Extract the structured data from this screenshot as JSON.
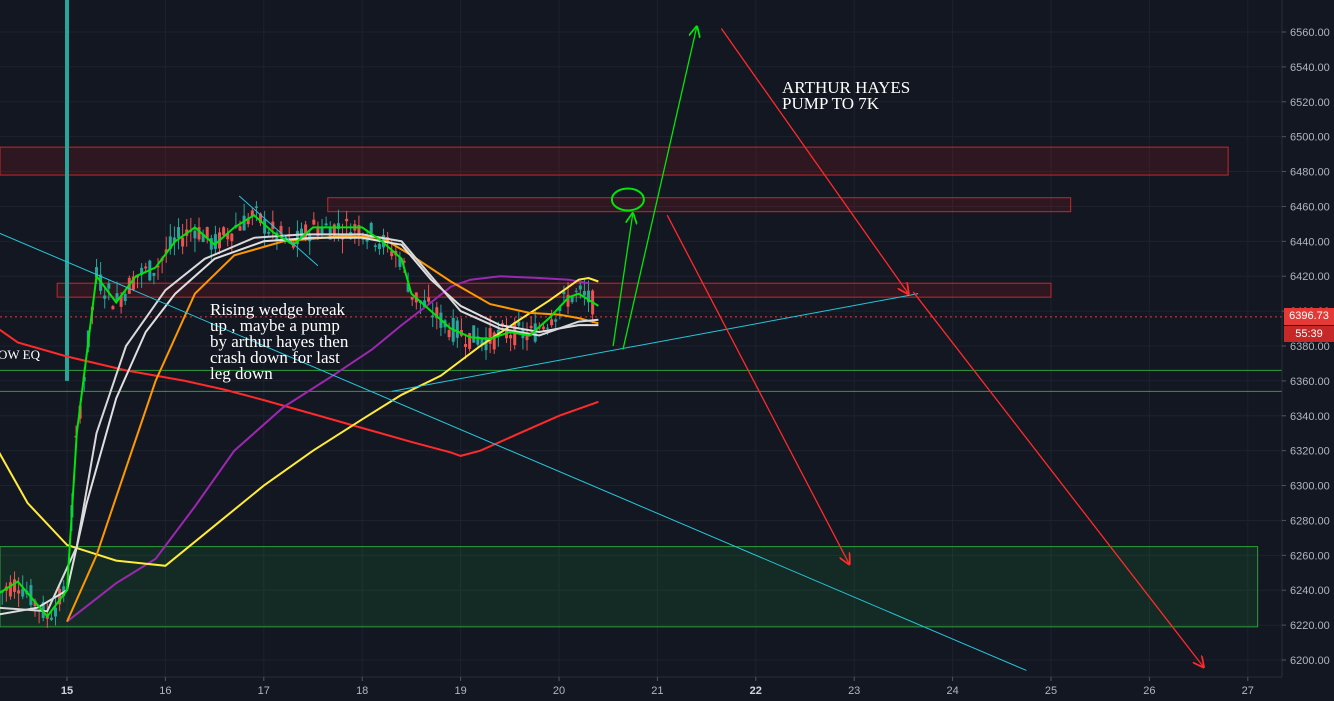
{
  "chart_data": {
    "type": "line",
    "ylim": [
      6190,
      6570
    ],
    "y_ticks": [
      "6200.00",
      "6220.00",
      "6240.00",
      "6260.00",
      "6280.00",
      "6300.00",
      "6320.00",
      "6340.00",
      "6360.00",
      "6380.00",
      "6400.00",
      "6420.00",
      "6440.00",
      "6460.00",
      "6480.00",
      "6500.00",
      "6520.00",
      "6540.00",
      "6560.00"
    ],
    "x_ticks": [
      {
        "label": "15",
        "bold": true
      },
      {
        "label": "16",
        "bold": false
      },
      {
        "label": "17",
        "bold": false
      },
      {
        "label": "18",
        "bold": false
      },
      {
        "label": "19",
        "bold": false
      },
      {
        "label": "20",
        "bold": false
      },
      {
        "label": "21",
        "bold": false
      },
      {
        "label": "22",
        "bold": true
      },
      {
        "label": "23",
        "bold": false
      },
      {
        "label": "24",
        "bold": false
      },
      {
        "label": "25",
        "bold": false
      },
      {
        "label": "26",
        "bold": false
      },
      {
        "label": "27",
        "bold": false
      }
    ],
    "last_price": "6396.73",
    "countdown": "55:39",
    "zones": [
      {
        "kind": "resistance",
        "from": 6478,
        "to": 6494,
        "start_day": 14.3,
        "end_day": 26.8
      },
      {
        "kind": "resistance",
        "from": 6457,
        "to": 6465,
        "start_day": 17.65,
        "end_day": 25.2
      },
      {
        "kind": "resistance",
        "from": 6408,
        "to": 6416,
        "start_day": 14.9,
        "end_day": 25.0
      },
      {
        "kind": "support",
        "from": 6219,
        "to": 6265,
        "start_day": 14.3,
        "end_day": 27.1
      }
    ],
    "support_lines": [
      6366,
      6354
    ],
    "moving_averages": [
      {
        "color": "#ff2a2a",
        "points": [
          [
            14.3,
            6390
          ],
          [
            14.5,
            6382
          ],
          [
            15.0,
            6374
          ],
          [
            15.6,
            6366
          ],
          [
            16.2,
            6360
          ],
          [
            16.6,
            6355
          ],
          [
            17.0,
            6349
          ],
          [
            17.5,
            6341
          ],
          [
            18.0,
            6333
          ],
          [
            18.5,
            6325
          ],
          [
            18.9,
            6319
          ],
          [
            19.0,
            6317
          ],
          [
            19.2,
            6320
          ],
          [
            19.6,
            6330
          ],
          [
            20.0,
            6340
          ],
          [
            20.4,
            6348
          ]
        ]
      },
      {
        "color": "#9c27b0",
        "points": [
          [
            15.0,
            6222
          ],
          [
            15.5,
            6244
          ],
          [
            15.9,
            6258
          ],
          [
            16.3,
            6288
          ],
          [
            16.7,
            6320
          ],
          [
            17.2,
            6345
          ],
          [
            17.7,
            6363
          ],
          [
            18.1,
            6378
          ],
          [
            18.4,
            6392
          ],
          [
            18.7,
            6405
          ],
          [
            18.9,
            6414
          ],
          [
            19.1,
            6418
          ],
          [
            19.4,
            6420
          ],
          [
            19.8,
            6419
          ],
          [
            20.1,
            6418
          ],
          [
            20.3,
            6416
          ]
        ]
      },
      {
        "color": "#ffeb3b",
        "points": [
          [
            14.3,
            6320
          ],
          [
            14.6,
            6290
          ],
          [
            15.0,
            6266
          ],
          [
            15.5,
            6257
          ],
          [
            16.0,
            6254
          ],
          [
            16.5,
            6277
          ],
          [
            17.0,
            6300
          ],
          [
            17.5,
            6320
          ],
          [
            18.0,
            6338
          ],
          [
            18.4,
            6352
          ],
          [
            18.8,
            6363
          ],
          [
            19.2,
            6380
          ],
          [
            19.6,
            6395
          ],
          [
            19.9,
            6406
          ],
          [
            20.1,
            6414
          ],
          [
            20.2,
            6418
          ],
          [
            20.3,
            6419
          ],
          [
            20.4,
            6417
          ]
        ]
      },
      {
        "color": "#ff9800",
        "points": [
          [
            15.0,
            6222
          ],
          [
            15.3,
            6260
          ],
          [
            15.6,
            6310
          ],
          [
            15.9,
            6360
          ],
          [
            16.3,
            6410
          ],
          [
            16.7,
            6432
          ],
          [
            17.2,
            6440
          ],
          [
            17.8,
            6443
          ],
          [
            18.2,
            6442
          ],
          [
            18.5,
            6432
          ],
          [
            18.9,
            6417
          ],
          [
            19.3,
            6404
          ],
          [
            19.7,
            6399
          ],
          [
            20.0,
            6398
          ],
          [
            20.2,
            6396
          ],
          [
            20.4,
            6393
          ]
        ]
      },
      {
        "color": "#e0e0e0",
        "points": [
          [
            14.3,
            6226
          ],
          [
            14.7,
            6230
          ],
          [
            15.0,
            6240
          ],
          [
            15.2,
            6290
          ],
          [
            15.5,
            6350
          ],
          [
            15.8,
            6388
          ],
          [
            16.1,
            6410
          ],
          [
            16.5,
            6430
          ],
          [
            17.0,
            6440
          ],
          [
            17.5,
            6442
          ],
          [
            18.0,
            6442
          ],
          [
            18.4,
            6438
          ],
          [
            18.7,
            6418
          ],
          [
            19.0,
            6403
          ],
          [
            19.4,
            6392
          ],
          [
            19.8,
            6388
          ],
          [
            20.2,
            6392
          ],
          [
            20.4,
            6392
          ]
        ]
      },
      {
        "color": "#d9d9d9",
        "points": [
          [
            14.3,
            6230
          ],
          [
            14.8,
            6228
          ],
          [
            15.1,
            6265
          ],
          [
            15.3,
            6330
          ],
          [
            15.6,
            6380
          ],
          [
            16.0,
            6412
          ],
          [
            16.4,
            6430
          ],
          [
            16.9,
            6442
          ],
          [
            17.4,
            6444
          ],
          [
            18.0,
            6444
          ],
          [
            18.4,
            6440
          ],
          [
            18.7,
            6420
          ],
          [
            19.0,
            6400
          ],
          [
            19.4,
            6390
          ],
          [
            19.8,
            6386
          ],
          [
            20.2,
            6394
          ],
          [
            20.4,
            6395
          ]
        ]
      },
      {
        "color": "#00e60b",
        "points": [
          [
            14.3,
            6238
          ],
          [
            14.5,
            6245
          ],
          [
            14.8,
            6225
          ],
          [
            15.0,
            6240
          ],
          [
            15.1,
            6330
          ],
          [
            15.3,
            6420
          ],
          [
            15.5,
            6405
          ],
          [
            15.7,
            6420
          ],
          [
            15.9,
            6425
          ],
          [
            16.1,
            6440
          ],
          [
            16.3,
            6448
          ],
          [
            16.5,
            6438
          ],
          [
            16.7,
            6448
          ],
          [
            16.9,
            6455
          ],
          [
            17.1,
            6445
          ],
          [
            17.3,
            6438
          ],
          [
            17.5,
            6448
          ],
          [
            17.8,
            6448
          ],
          [
            18.0,
            6448
          ],
          [
            18.2,
            6440
          ],
          [
            18.4,
            6430
          ],
          [
            18.5,
            6410
          ],
          [
            18.7,
            6400
          ],
          [
            18.9,
            6390
          ],
          [
            19.1,
            6385
          ],
          [
            19.3,
            6384
          ],
          [
            19.5,
            6388
          ],
          [
            19.7,
            6386
          ],
          [
            19.9,
            6396
          ],
          [
            20.1,
            6408
          ],
          [
            20.2,
            6410
          ],
          [
            20.4,
            6403
          ]
        ]
      }
    ],
    "trendlines": [
      {
        "color": "#26c6da",
        "from": [
          14.3,
          6445
        ],
        "to": [
          24.75,
          6194
        ]
      },
      {
        "color": "#26c6da",
        "from": [
          18.3,
          6354
        ],
        "to": [
          23.65,
          6410
        ]
      },
      {
        "color": "#26c6da",
        "from": [
          16.75,
          6466
        ],
        "to": [
          17.55,
          6426
        ]
      }
    ],
    "arrows": [
      {
        "color": "#00e60b",
        "from": [
          20.55,
          6380
        ],
        "to": [
          20.75,
          6456
        ]
      },
      {
        "color": "#00e60b",
        "from": [
          20.65,
          6378
        ],
        "to": [
          21.4,
          6563
        ]
      },
      {
        "color": "#ff2a2a",
        "from": [
          21.1,
          6455
        ],
        "to": [
          22.95,
          6255
        ]
      },
      {
        "color": "#ff2a2a",
        "from": [
          21.65,
          6562
        ],
        "to": [
          23.55,
          6410
        ]
      },
      {
        "color": "#ff2a2a",
        "from": [
          23.6,
          6411
        ],
        "to": [
          26.55,
          6196
        ]
      }
    ],
    "ellipse": {
      "color": "#00e60b",
      "center": [
        20.7,
        6464
      ]
    }
  },
  "annotations": {
    "wedge_note": "Rising wedge break\nup , maybe a pump\nby arthur hayes then\ncrash down for last\nleg down",
    "hayes_note": "ARTHUR HAYES\nPUMP TO 7K",
    "left_label": "OW EQ"
  }
}
